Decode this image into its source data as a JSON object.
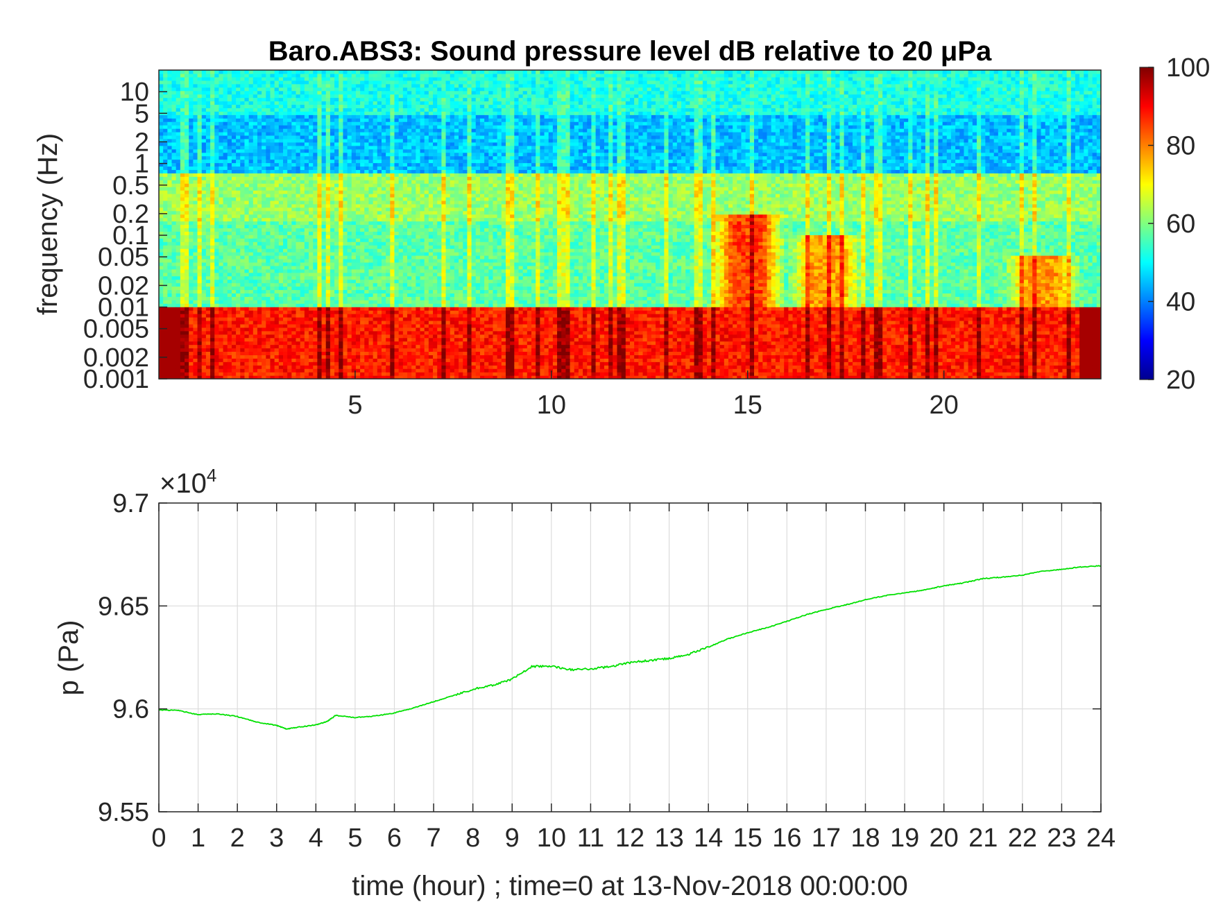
{
  "chart_data": [
    {
      "type": "heatmap",
      "title": "Baro.ABS3: Sound pressure level dB relative to 20 μPa",
      "ylabel": "frequency (Hz)",
      "xlabel": "",
      "xlim": [
        0,
        24
      ],
      "ylim": [
        0.001,
        20
      ],
      "yscale": "log",
      "x_ticks": [
        5,
        10,
        15,
        20
      ],
      "x_tick_labels": [
        "5",
        "10",
        "15",
        "20"
      ],
      "y_ticks": [
        0.001,
        0.002,
        0.005,
        0.01,
        0.02,
        0.05,
        0.1,
        0.2,
        0.5,
        1,
        2,
        5,
        10
      ],
      "y_tick_labels": [
        "0.001",
        "0.002",
        "0.005",
        "0.01",
        "0.02",
        "0.05",
        "0.1",
        "0.2",
        "0.5",
        "1",
        "2",
        "5",
        "10"
      ],
      "colormap": "jet",
      "colorbar": {
        "min": 20,
        "max": 100,
        "ticks": [
          20,
          40,
          60,
          80,
          100
        ],
        "tick_labels": [
          "20",
          "40",
          "60",
          "80",
          "100"
        ]
      },
      "bands": [
        {
          "f_low": 5,
          "f_high": 20,
          "level_db": 52
        },
        {
          "f_low": 0.7,
          "f_high": 5,
          "level_db": 45
        },
        {
          "f_low": 0.15,
          "f_high": 0.7,
          "level_db": 62
        },
        {
          "f_low": 0.01,
          "f_high": 0.15,
          "level_db": 57
        },
        {
          "f_low": 0.001,
          "f_high": 0.01,
          "level_db": 88
        }
      ],
      "events": [
        {
          "t_start": 14,
          "t_end": 16,
          "f_high": 0.2,
          "level_db": 85
        },
        {
          "t_start": 16,
          "t_end": 18,
          "f_high": 0.1,
          "level_db": 78
        },
        {
          "t_start": 21.5,
          "t_end": 23.5,
          "f_high": 0.05,
          "level_db": 78
        }
      ]
    },
    {
      "type": "line",
      "xlabel": "time (hour) ; time=0 at 13-Nov-2018 00:00:00",
      "ylabel": "p (Pa)",
      "y_exponent_label": "×10",
      "y_exponent": "4",
      "xlim": [
        0,
        24
      ],
      "ylim": [
        95500,
        97000
      ],
      "grid": true,
      "x_ticks": [
        0,
        1,
        2,
        3,
        4,
        5,
        6,
        7,
        8,
        9,
        10,
        11,
        12,
        13,
        14,
        15,
        16,
        17,
        18,
        19,
        20,
        21,
        22,
        23,
        24
      ],
      "x_tick_labels": [
        "0",
        "1",
        "2",
        "3",
        "4",
        "5",
        "6",
        "7",
        "8",
        "9",
        "10",
        "11",
        "12",
        "13",
        "14",
        "15",
        "16",
        "17",
        "18",
        "19",
        "20",
        "21",
        "22",
        "23",
        "24"
      ],
      "y_ticks": [
        95500,
        96000,
        96500,
        97000
      ],
      "y_tick_labels": [
        "9.55",
        "9.6",
        "9.65",
        "9.7"
      ],
      "series": [
        {
          "color": "#00e000",
          "x": [
            0,
            0.5,
            1,
            1.5,
            2,
            2.5,
            3,
            3.25,
            3.5,
            4,
            4.3,
            4.5,
            5,
            5.5,
            6,
            6.5,
            7,
            7.5,
            8,
            8.5,
            9,
            9.5,
            10,
            10.5,
            11,
            11.5,
            12,
            12.5,
            13,
            13.5,
            14,
            14.5,
            15,
            15.5,
            16,
            16.5,
            17,
            17.5,
            18,
            18.5,
            19,
            19.5,
            20,
            20.5,
            21,
            21.5,
            22,
            22.5,
            23,
            23.5,
            24
          ],
          "y": [
            95995,
            95992,
            95972,
            95976,
            95963,
            95935,
            95920,
            95902,
            95910,
            95922,
            95940,
            95968,
            95958,
            95965,
            95980,
            96005,
            96035,
            96065,
            96095,
            96115,
            96145,
            96205,
            96208,
            96190,
            96195,
            96205,
            96225,
            96235,
            96245,
            96265,
            96300,
            96340,
            96370,
            96395,
            96425,
            96458,
            96483,
            96505,
            96530,
            96550,
            96563,
            96578,
            96598,
            96612,
            96633,
            96640,
            96650,
            96668,
            96678,
            96690,
            96695
          ]
        }
      ]
    }
  ]
}
